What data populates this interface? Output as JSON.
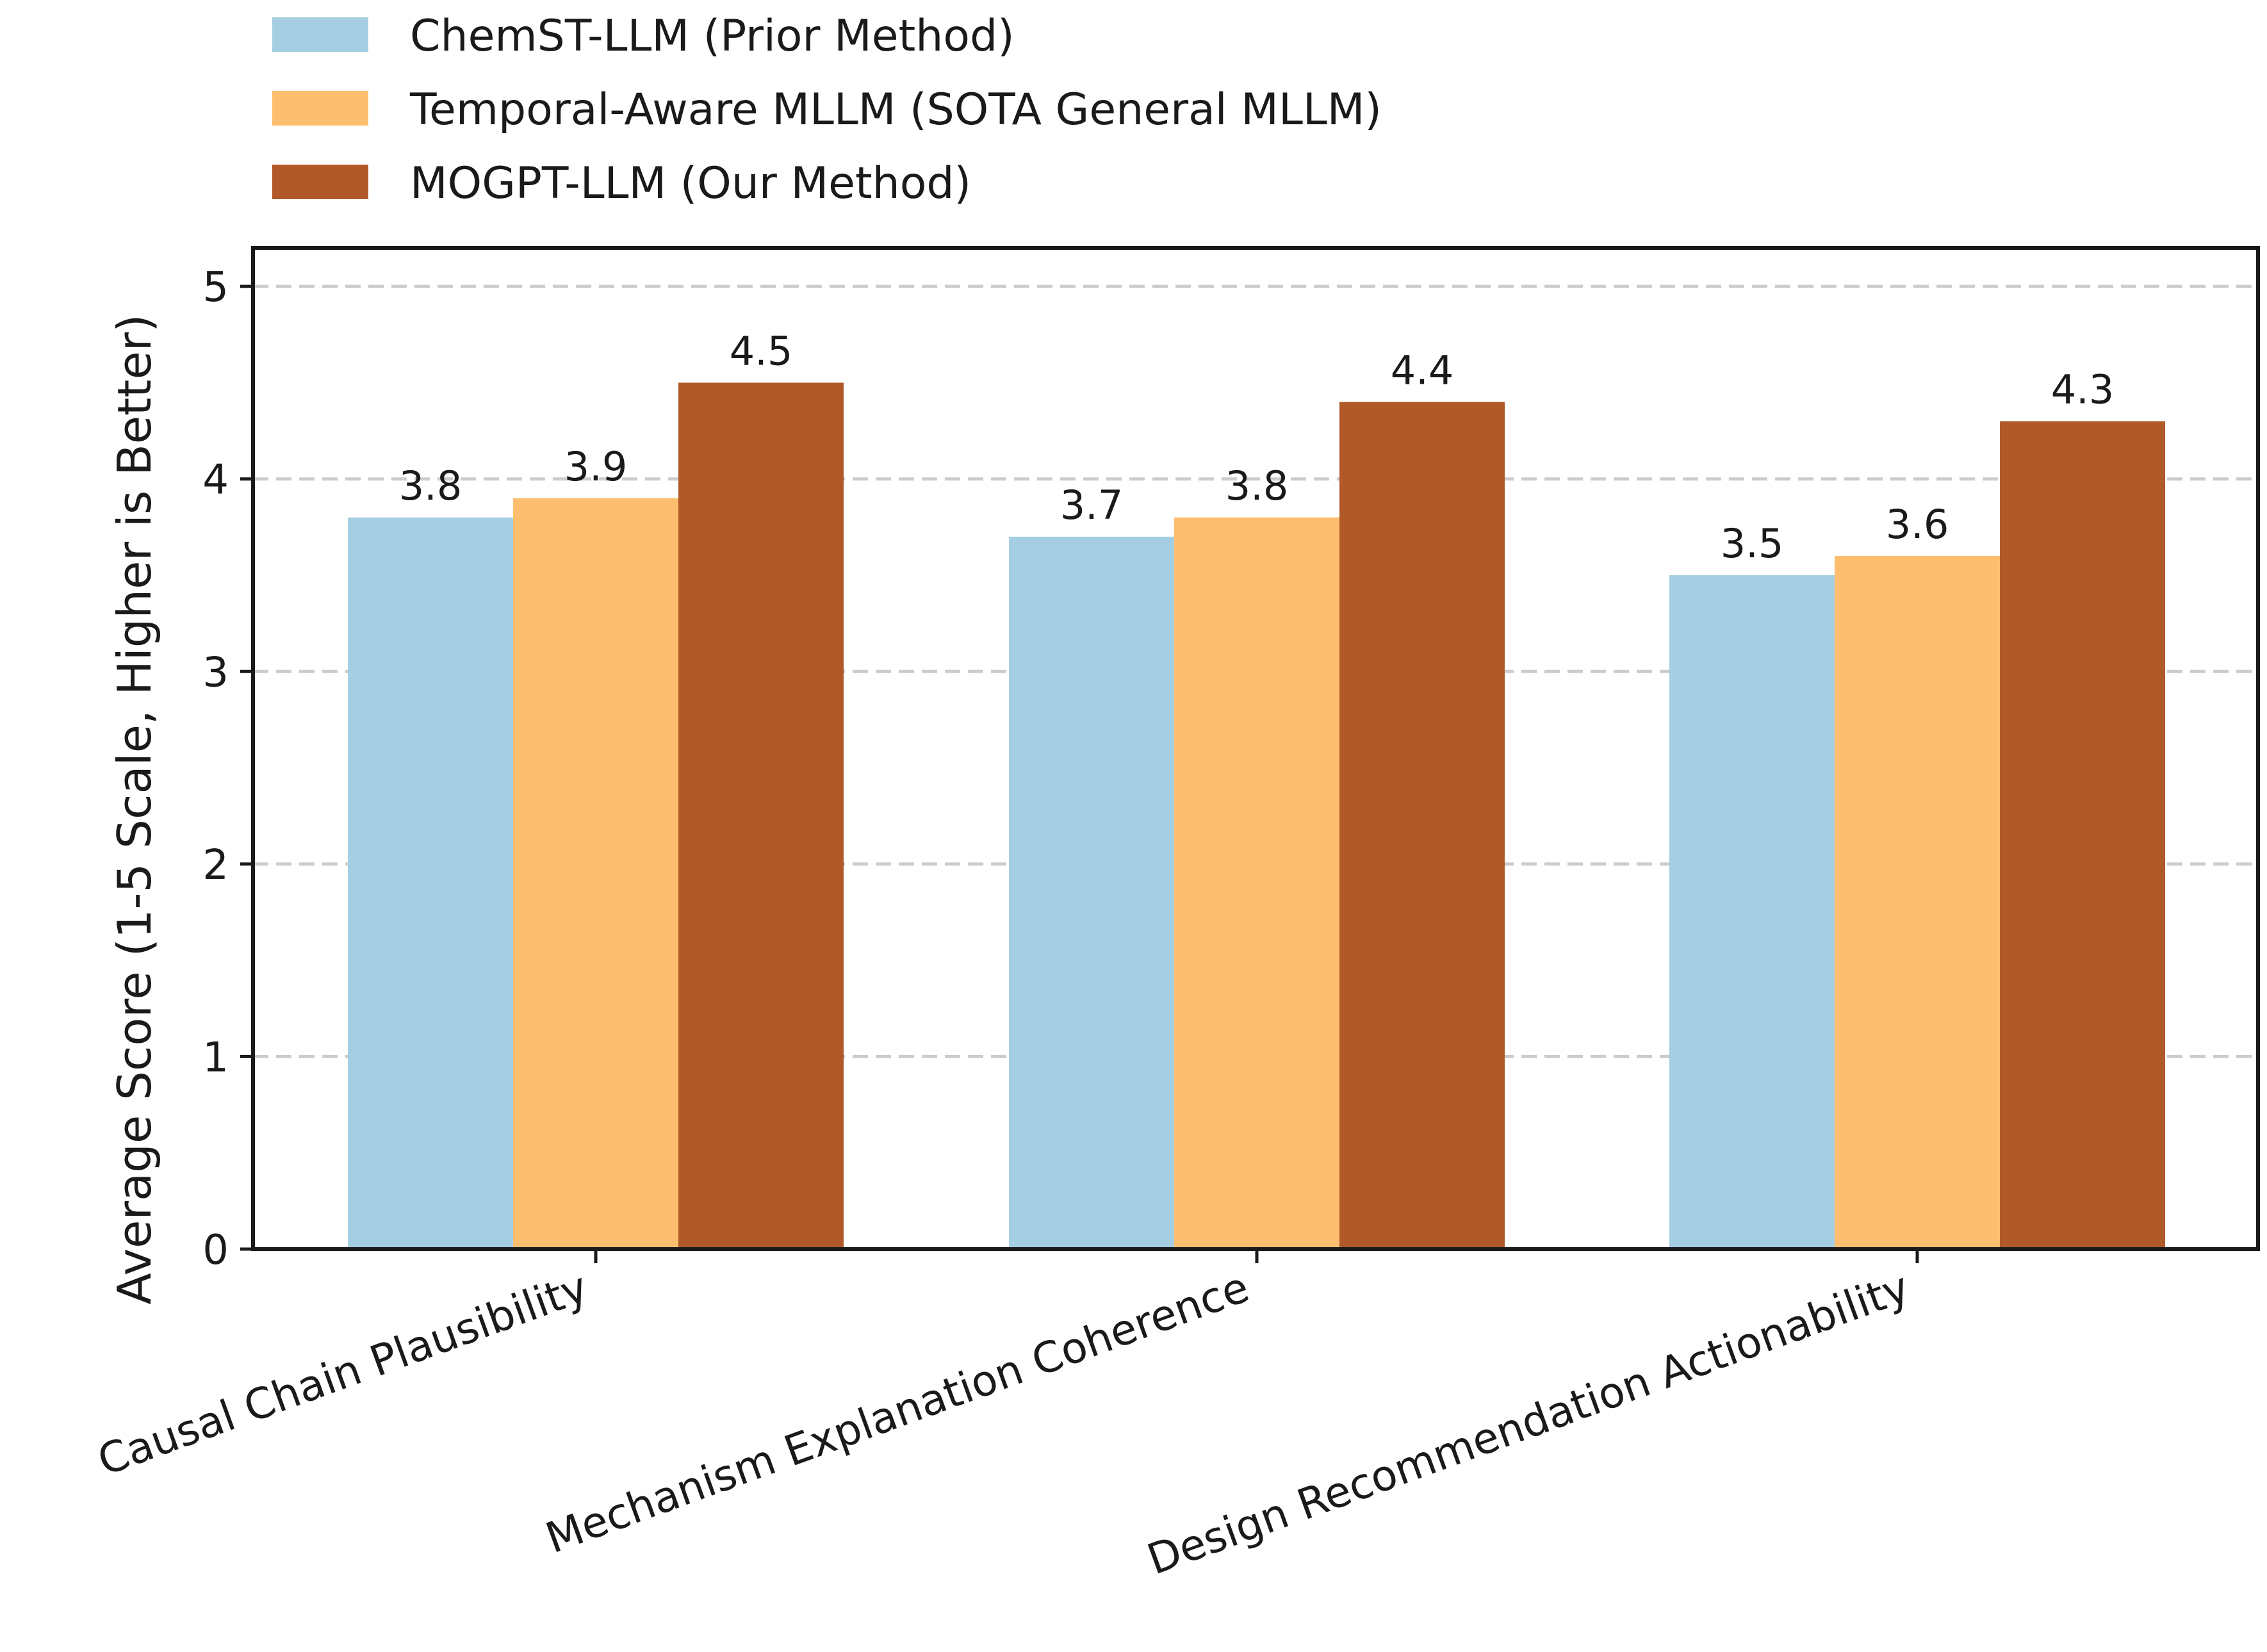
{
  "chart_data": {
    "type": "bar",
    "title": "",
    "xlabel": "",
    "ylabel": "Average Score (1-5 Scale, Higher is Better)",
    "ylim": [
      0,
      5.2
    ],
    "yticks": [
      "0",
      "1",
      "2",
      "3",
      "4",
      "5"
    ],
    "grid": "horizontal dashed",
    "legend_position": "top-left, above plot",
    "categories": [
      "Causal Chain Plausibility",
      "Mechanism Explanation Coherence",
      "Design Recommendation Actionability"
    ],
    "series": [
      {
        "name": "ChemST-LLM (Prior Method)",
        "color": "#a6cee3",
        "values": [
          3.8,
          3.7,
          3.5
        ],
        "labels": [
          "3.8",
          "3.7",
          "3.5"
        ]
      },
      {
        "name": "Temporal-Aware MLLM (SOTA General MLLM)",
        "color": "#fdbf6f",
        "values": [
          3.9,
          3.8,
          3.6
        ],
        "labels": [
          "3.9",
          "3.8",
          "3.6"
        ]
      },
      {
        "name": "MOGPT-LLM (Our Method)",
        "color": "#b15928",
        "values": [
          4.5,
          4.4,
          4.3
        ],
        "labels": [
          "4.5",
          "4.4",
          "4.3"
        ]
      }
    ]
  }
}
